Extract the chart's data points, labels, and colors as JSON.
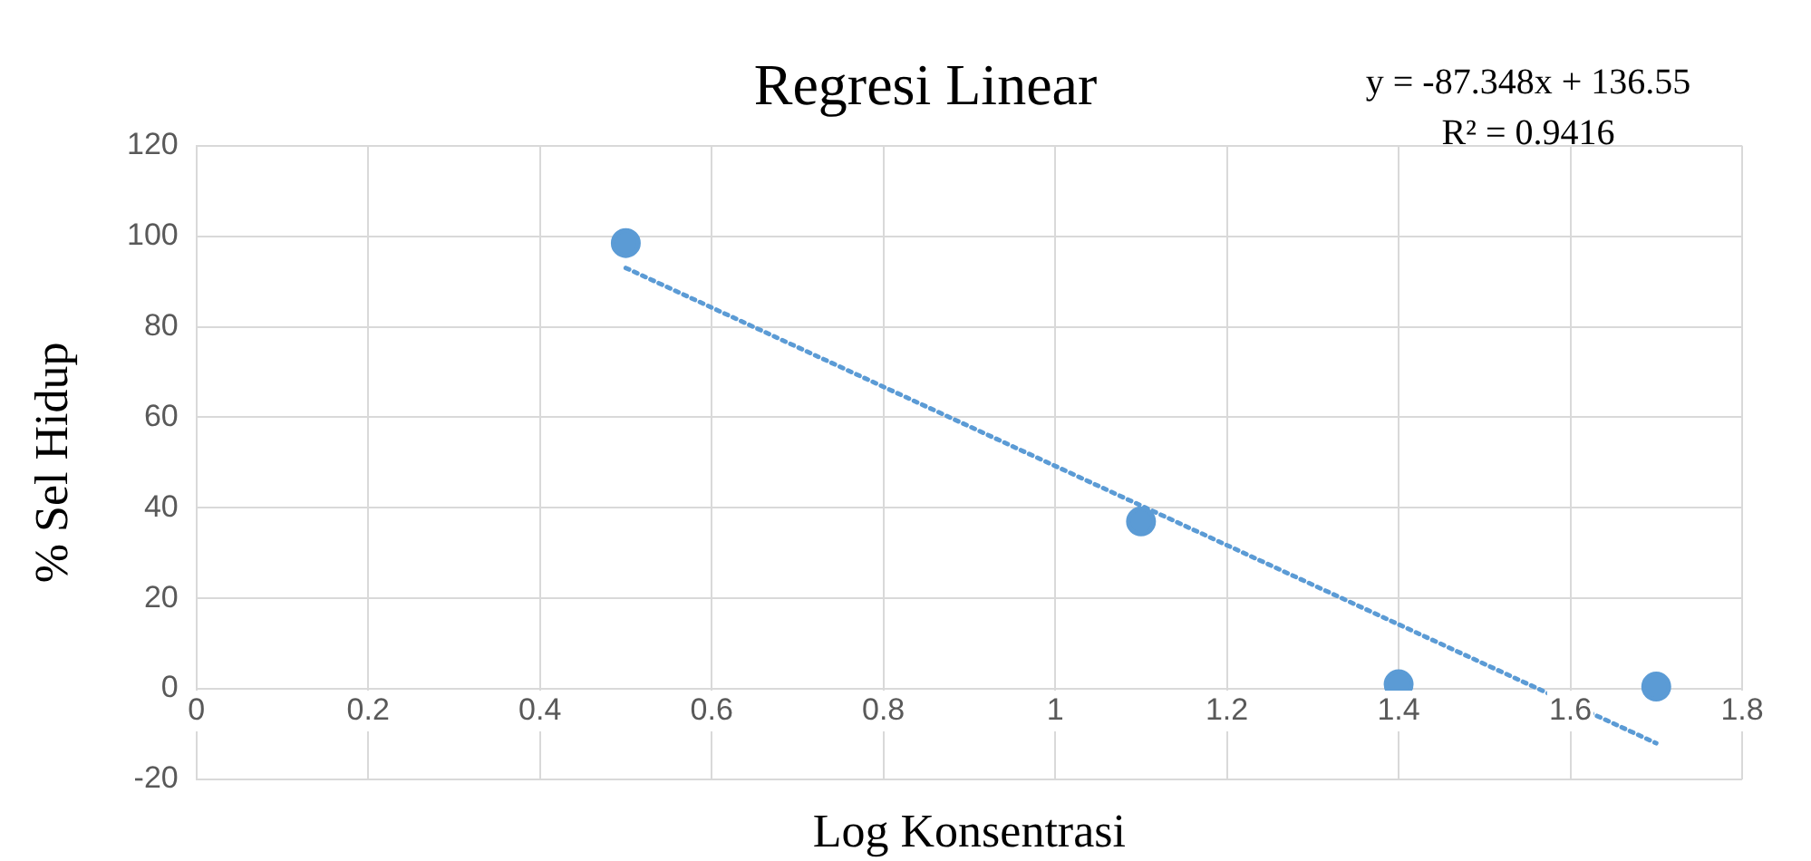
{
  "chart_data": {
    "type": "scatter",
    "title": "Regresi Linear",
    "xlabel": "Log Konsentrasi",
    "ylabel": "% Sel Hidup",
    "annotations": [
      "y = -87.348x + 136.55",
      "R² = 0.9416"
    ],
    "series": [
      {
        "type": "scatter",
        "x": [
          0.5,
          1.1,
          1.4,
          1.7
        ],
        "values": [
          98.5,
          37,
          1,
          0.5
        ],
        "color": "#5b9bd5",
        "marker": "circle"
      },
      {
        "type": "line",
        "x": [
          0.5,
          1.7
        ],
        "values": [
          93,
          -12
        ],
        "color": "#5b9bd5",
        "line_style": "dotted",
        "marker": "none"
      }
    ],
    "xlim": [
      0,
      1.8
    ],
    "xticks": [
      0,
      0.2,
      0.4,
      0.6,
      0.8,
      1,
      1.2,
      1.4,
      1.6,
      1.8
    ],
    "ylim": [
      -20,
      120
    ],
    "yticks": [
      -20,
      0,
      20,
      40,
      60,
      80,
      100,
      120
    ],
    "grid": true
  }
}
